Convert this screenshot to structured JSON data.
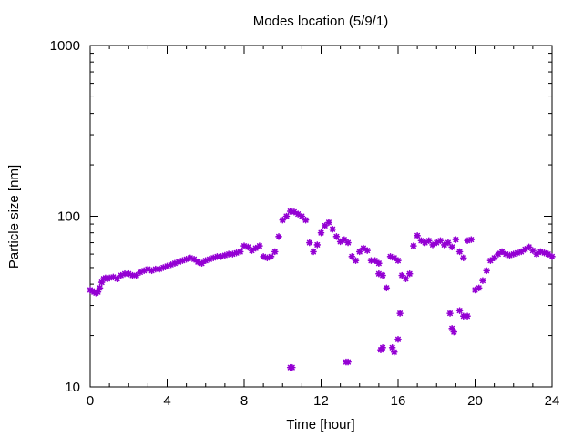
{
  "chart_data": {
    "type": "scatter",
    "title": "Modes location (5/9/1)",
    "xlabel": "Time [hour]",
    "ylabel": "Particle size [nm]",
    "xlim": [
      0,
      24
    ],
    "ylim": [
      10,
      1000
    ],
    "yscale": "log",
    "xticks": [
      "0",
      "4",
      "8",
      "12",
      "16",
      "20",
      "24"
    ],
    "yticks": [
      "10",
      "100",
      "1000"
    ],
    "grid": false,
    "marker_color": "#9400d3",
    "series": [
      {
        "x": [
          0.0,
          0.1,
          0.2,
          0.3,
          0.4,
          0.5,
          0.6,
          0.7,
          0.8,
          0.9,
          1.0,
          1.2,
          1.4,
          1.6,
          1.8,
          2.0,
          2.2,
          2.4,
          2.6,
          2.8,
          3.0,
          3.2,
          3.4,
          3.6,
          3.8,
          4.0,
          4.2,
          4.4,
          4.6,
          4.8,
          5.0,
          5.2,
          5.4,
          5.6,
          5.8,
          6.0,
          6.2,
          6.4,
          6.6,
          6.8,
          7.0,
          7.2,
          7.4,
          7.6,
          7.8,
          8.0,
          8.2,
          8.4,
          8.6,
          8.8,
          9.0,
          9.2,
          9.4,
          9.6,
          9.8,
          10.0,
          10.2,
          10.4,
          10.6,
          10.8,
          11.0,
          11.2,
          11.4,
          11.6,
          11.8,
          12.0,
          12.2,
          12.4,
          12.6,
          12.8,
          13.0,
          13.2,
          13.4,
          13.6,
          13.8,
          14.0,
          14.2,
          14.4,
          14.6,
          14.8,
          15.0,
          15.2,
          15.4,
          15.6,
          15.8,
          16.0,
          16.2,
          16.4,
          16.6,
          16.8,
          17.0,
          17.2,
          17.4,
          17.6,
          17.8,
          18.0,
          18.2,
          18.4,
          18.6,
          18.8,
          19.0,
          19.2,
          19.4,
          19.6,
          19.8,
          20.0,
          20.2,
          20.4,
          20.6,
          20.8,
          21.0,
          21.2,
          21.4,
          21.6,
          21.8,
          22.0,
          22.2,
          22.4,
          22.6,
          22.8,
          23.0,
          23.2,
          23.4,
          23.6,
          23.8,
          24.0,
          10.4,
          10.5,
          13.3,
          13.4,
          15.1,
          15.2,
          15.7,
          15.8,
          16.0,
          16.1,
          15.0,
          18.7,
          18.8,
          18.9,
          19.2,
          19.4,
          19.6
        ],
        "y": [
          37,
          36.5,
          36,
          35.5,
          36,
          38,
          41,
          43,
          43.5,
          43,
          43.5,
          44,
          43,
          45,
          46,
          46,
          45,
          45,
          47,
          48,
          49,
          48,
          49,
          49,
          50,
          51,
          52,
          53,
          54,
          55,
          56,
          57,
          56,
          54,
          53,
          55,
          56,
          57,
          58,
          58,
          59,
          60,
          60,
          61,
          62,
          67,
          66,
          63,
          65,
          67,
          58,
          57,
          58,
          62,
          76,
          95,
          100,
          107,
          106,
          103,
          100,
          95,
          70,
          62,
          68,
          80,
          88,
          92,
          84,
          76,
          71,
          73,
          70,
          58,
          55,
          62,
          65,
          63,
          55,
          55,
          53,
          45,
          38,
          58,
          57,
          55,
          45,
          43,
          46,
          67,
          77,
          72,
          70,
          72,
          68,
          70,
          72,
          68,
          70,
          66,
          73,
          62,
          57,
          72,
          73,
          37,
          38,
          42,
          48,
          55,
          57,
          60,
          62,
          60,
          59,
          60,
          61,
          62,
          64,
          66,
          63,
          60,
          62,
          61,
          60,
          58,
          13,
          13,
          14,
          14,
          16.5,
          17,
          17,
          16,
          19,
          27,
          46,
          27,
          22,
          21,
          28,
          26,
          26
        ]
      }
    ]
  }
}
